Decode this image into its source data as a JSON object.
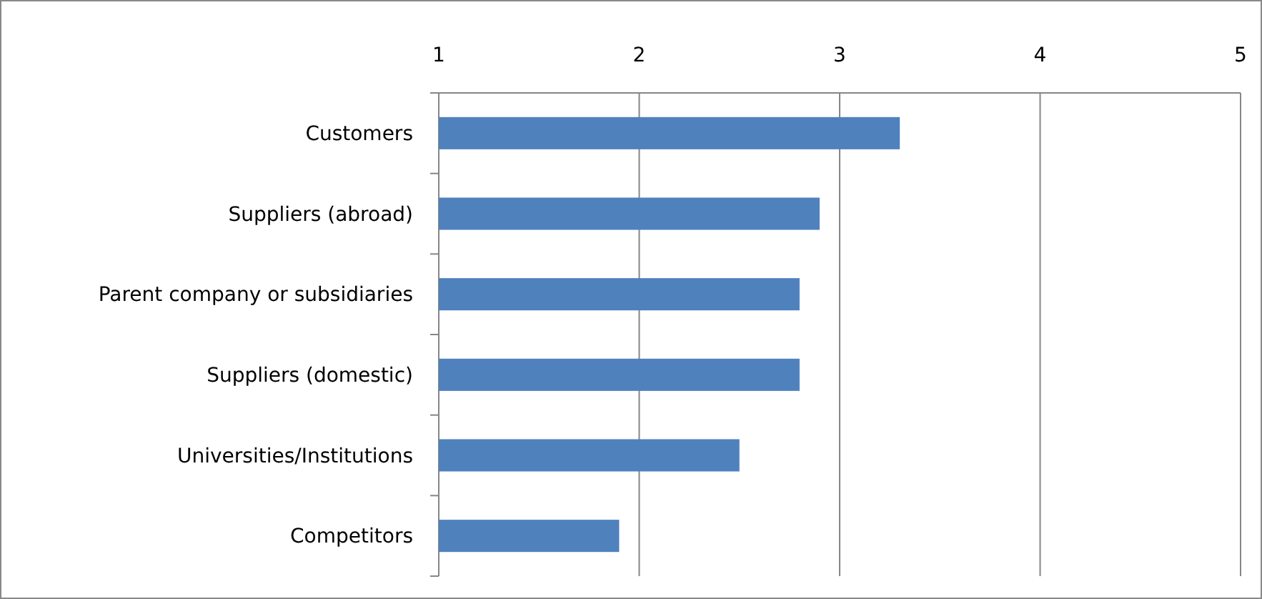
{
  "chart_data": {
    "type": "bar",
    "orientation": "horizontal",
    "categories": [
      "Customers",
      "Suppliers (abroad)",
      "Parent company or subsidiaries",
      "Suppliers (domestic)",
      "Universities/Institutions",
      "Competitors"
    ],
    "values": [
      3.3,
      2.9,
      2.8,
      2.8,
      2.5,
      1.9
    ],
    "color": "#4f81bd",
    "xlim": [
      1,
      5
    ],
    "xticks": [
      1,
      2,
      3,
      4,
      5
    ],
    "grid": "x"
  }
}
